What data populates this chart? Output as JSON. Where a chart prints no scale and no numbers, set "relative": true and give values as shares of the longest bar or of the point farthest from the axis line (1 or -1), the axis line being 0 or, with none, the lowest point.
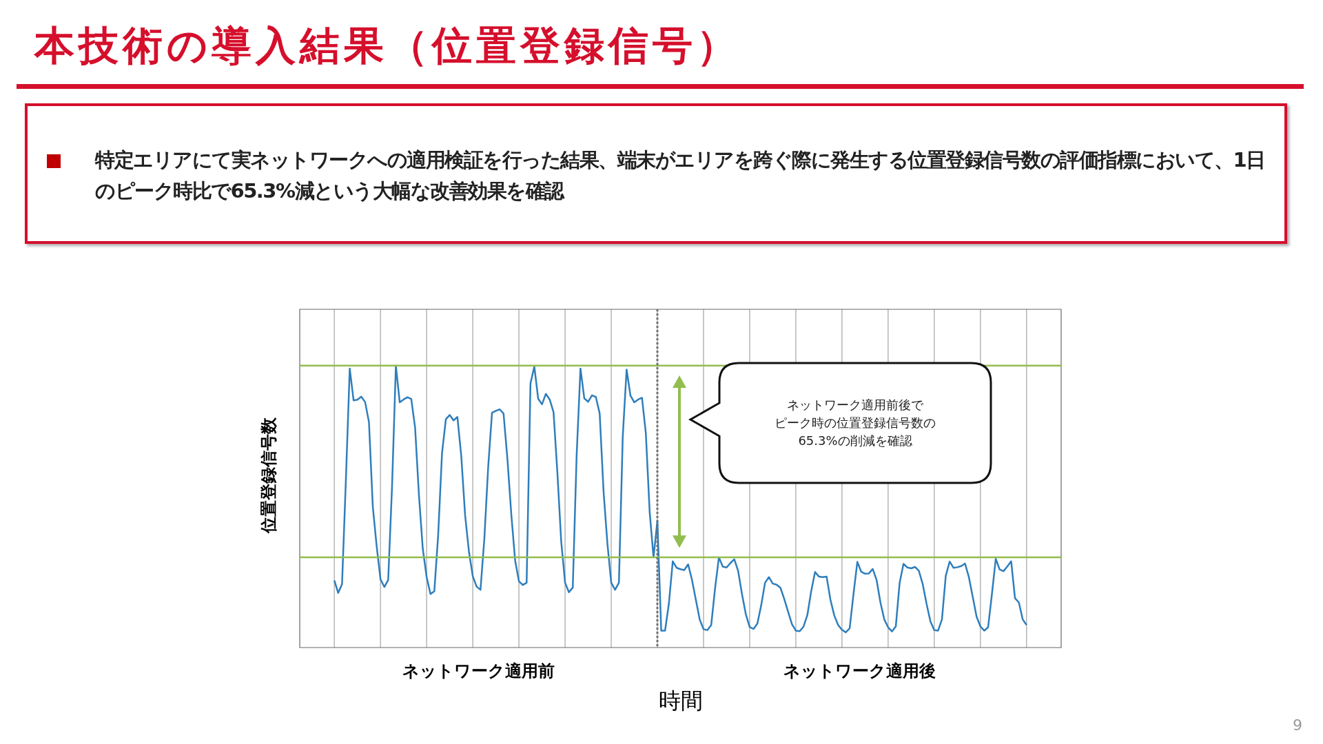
{
  "chart_data": {
    "type": "line",
    "title": "本技術の導入結果（位置登録信号）",
    "subtitle": "特定エリアにて実ネットワークへの適用検証を行った結果、端末がエリアを跨ぐ際に発生する位置登録信号数の評価指標において、1日のピーク時比で65.3%減という大幅な改善効果を確認",
    "xlabel": "時間",
    "ylabel": "位置登録信号数",
    "annotations": [
      "ネットワーク適用前後で",
      "ピーク時の位置登録信号数の",
      "65.3%の削減を確認",
      "ネットワーク適用前",
      "ネットワーク適用後",
      "9"
    ],
    "relative": true,
    "marker": "none",
    "line_style": "solid",
    "grid": "x",
    "ref_lines": [
      {
        "axis": "y",
        "value": 1,
        "color": "#92bd4f"
      },
      {
        "axis": "y",
        "value": 0.32,
        "color": "#92bd4f"
      }
    ],
    "categories": [
      null,
      null,
      null,
      null,
      null,
      null,
      null,
      null,
      null,
      null,
      null,
      null,
      null,
      null,
      null,
      null,
      null,
      null,
      null,
      null,
      null,
      null,
      null,
      null,
      null,
      null,
      null,
      null,
      null,
      null,
      null,
      null,
      null,
      null,
      null,
      null,
      null,
      null,
      null,
      null,
      null,
      null,
      null,
      null,
      null,
      null,
      null,
      null,
      null,
      null,
      null,
      null,
      null,
      null,
      null,
      null,
      null,
      null,
      null,
      null,
      null,
      null,
      null,
      null,
      null,
      null,
      null,
      null,
      null,
      null,
      null,
      null,
      null,
      null,
      null,
      null,
      null,
      null,
      null,
      null,
      null,
      null,
      null,
      null,
      null,
      null,
      null,
      null,
      null,
      null,
      null,
      null,
      null,
      null,
      null,
      null,
      null,
      null,
      null,
      null,
      null,
      null,
      null,
      null,
      null,
      null,
      null,
      null,
      null,
      null,
      null,
      null,
      null,
      null,
      null,
      null,
      null,
      null,
      null,
      null,
      null,
      null,
      null,
      null,
      null,
      null,
      null,
      null,
      null,
      null,
      null,
      null,
      null,
      null,
      null,
      null,
      null,
      null,
      null,
      null,
      null,
      null,
      null,
      null,
      null,
      null,
      null,
      null,
      null,
      null,
      null,
      null,
      null,
      null,
      null,
      null,
      null,
      null,
      null,
      null,
      null,
      null,
      null,
      null,
      null,
      null,
      null,
      null,
      null,
      null,
      null,
      null,
      null,
      null,
      null,
      null,
      null,
      null,
      null,
      null,
      null
    ],
    "series": [
      {
        "color": "#2e7ebc",
        "values": [
          0.238,
          0.194,
          0.225,
          0.595,
          0.99,
          0.877,
          0.879,
          0.89,
          0.871,
          0.8,
          0.5,
          0.36,
          0.242,
          0.215,
          0.24,
          0.57,
          1,
          0.87,
          0.88,
          0.888,
          0.882,
          0.78,
          0.54,
          0.35,
          0.25,
          0.19,
          0.2,
          0.4,
          0.69,
          0.81,
          0.825,
          0.806,
          0.818,
          0.68,
          0.47,
          0.34,
          0.253,
          0.216,
          0.205,
          0.385,
          0.64,
          0.833,
          0.84,
          0.845,
          0.83,
          0.67,
          0.475,
          0.31,
          0.235,
          0.222,
          0.23,
          0.937,
          0.997,
          0.883,
          0.863,
          0.9,
          0.88,
          0.835,
          0.62,
          0.375,
          0.23,
          0.196,
          0.213,
          0.68,
          0.99,
          0.884,
          0.872,
          0.895,
          0.889,
          0.83,
          0.555,
          0.37,
          0.23,
          0.205,
          0.23,
          0.75,
          0.986,
          0.894,
          0.87,
          0.88,
          0.886,
          0.76,
          0.48,
          0.32,
          0.45,
          0.06,
          0.06,
          0.157,
          0.306,
          0.283,
          0.278,
          0.275,
          0.295,
          0.24,
          0.17,
          0.1,
          0.065,
          0.062,
          0.08,
          0.21,
          0.32,
          0.287,
          0.284,
          0.3,
          0.313,
          0.272,
          0.19,
          0.118,
          0.073,
          0.066,
          0.085,
          0.15,
          0.23,
          0.25,
          0.227,
          0.223,
          0.212,
          0.172,
          0.127,
          0.083,
          0.06,
          0.058,
          0.074,
          0.115,
          0.2,
          0.268,
          0.252,
          0.25,
          0.252,
          0.17,
          0.114,
          0.08,
          0.063,
          0.054,
          0.068,
          0.19,
          0.304,
          0.269,
          0.262,
          0.263,
          0.279,
          0.24,
          0.16,
          0.1,
          0.072,
          0.057,
          0.075,
          0.23,
          0.297,
          0.284,
          0.281,
          0.286,
          0.272,
          0.225,
          0.155,
          0.093,
          0.062,
          0.06,
          0.1,
          0.255,
          0.305,
          0.283,
          0.285,
          0.289,
          0.298,
          0.25,
          0.18,
          0.11,
          0.075,
          0.06,
          0.072,
          0.19,
          0.315,
          0.277,
          0.271,
          0.288,
          0.306,
          0.175,
          0.16,
          0.1,
          0.08
        ]
      }
    ]
  }
}
